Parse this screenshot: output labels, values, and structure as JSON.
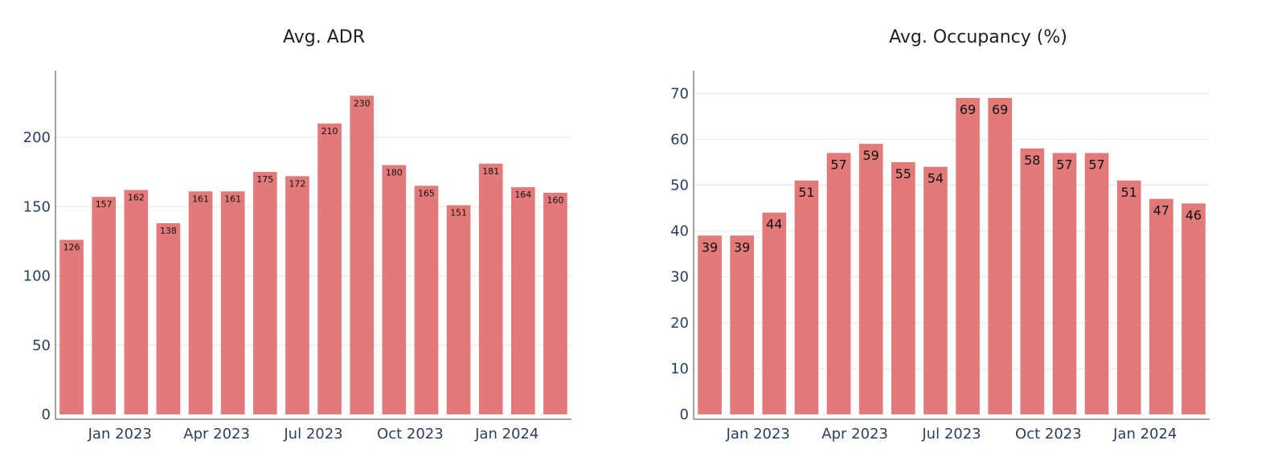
{
  "colors": {
    "bar": "#e27a7a",
    "axis_text": "#2a3f5f",
    "grid": "#e6e6e6"
  },
  "chart_data": [
    {
      "type": "bar",
      "title": "Avg. ADR",
      "xlabel": "",
      "ylabel": "",
      "x": [
        "2022-11",
        "2022-12",
        "2023-01",
        "2023-02",
        "2023-03",
        "2023-04",
        "2023-05",
        "2023-06",
        "2023-07",
        "2023-08",
        "2023-09",
        "2023-10",
        "2023-11",
        "2023-12",
        "2024-01",
        "2024-02"
      ],
      "values": [
        126,
        157,
        162,
        138,
        161,
        161,
        175,
        172,
        210,
        230,
        180,
        165,
        151,
        181,
        164,
        160
      ],
      "data_labels": [
        "126",
        "157",
        "162",
        "138",
        "161",
        "161",
        "175",
        "172",
        "210",
        "230",
        "180",
        "165",
        "151",
        "181",
        "164",
        "160"
      ],
      "ylim": [
        0,
        240
      ],
      "y_ticks": [
        0,
        50,
        100,
        150,
        200
      ],
      "y_tick_labels": [
        "0",
        "50",
        "100",
        "150",
        "200"
      ],
      "x_ticks": [
        "2023-01",
        "2023-04",
        "2023-07",
        "2023-10",
        "2024-01"
      ],
      "x_tick_labels": [
        "Jan 2023",
        "Apr 2023",
        "Jul 2023",
        "Oct 2023",
        "Jan 2024"
      ],
      "grid": true,
      "legend": "none"
    },
    {
      "type": "bar",
      "title": "Avg. Occupancy (%)",
      "xlabel": "",
      "ylabel": "",
      "x": [
        "2022-11",
        "2022-12",
        "2023-01",
        "2023-02",
        "2023-03",
        "2023-04",
        "2023-05",
        "2023-06",
        "2023-07",
        "2023-08",
        "2023-09",
        "2023-10",
        "2023-11",
        "2023-12",
        "2024-01",
        "2024-02"
      ],
      "values": [
        39,
        39,
        44,
        51,
        57,
        59,
        55,
        54,
        69,
        69,
        58,
        57,
        57,
        51,
        47,
        46
      ],
      "data_labels": [
        "39",
        "39",
        "44",
        "51",
        "57",
        "59",
        "55",
        "54",
        "69",
        "69",
        "58",
        "57",
        "57",
        "51",
        "47",
        "46"
      ],
      "ylim": [
        0,
        72.5
      ],
      "y_ticks": [
        0,
        10,
        20,
        30,
        40,
        50,
        60,
        70
      ],
      "y_tick_labels": [
        "0",
        "10",
        "20",
        "30",
        "40",
        "50",
        "60",
        "70"
      ],
      "x_ticks": [
        "2023-01",
        "2023-04",
        "2023-07",
        "2023-10",
        "2024-01"
      ],
      "x_tick_labels": [
        "Jan 2023",
        "Apr 2023",
        "Jul 2023",
        "Oct 2023",
        "Jan 2024"
      ],
      "grid": true,
      "legend": "none"
    }
  ]
}
